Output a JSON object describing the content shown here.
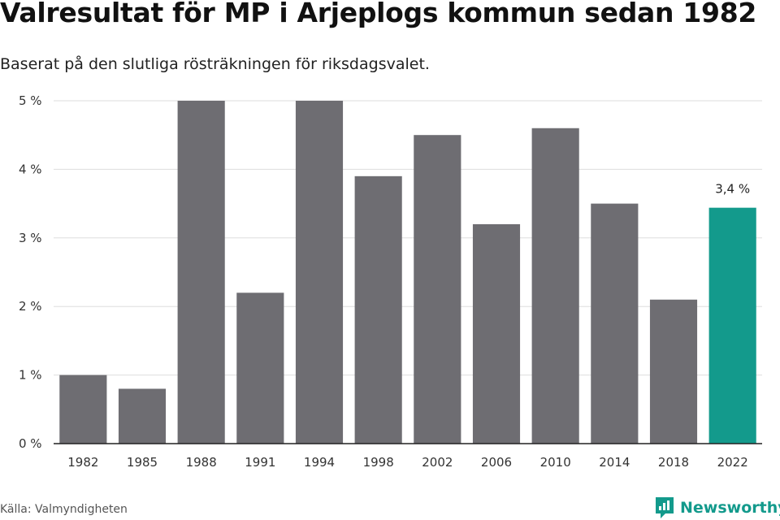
{
  "header": {
    "title": "Valresultat för MP i Arjeplogs kommun sedan 1982",
    "subtitle": "Baserat på den slutliga rösträkningen för riksdagsvalet."
  },
  "footer": {
    "source": "Källa: Valmyndigheten",
    "brand": "Newsworthy",
    "brand_icon": "newsworthy-logo-icon"
  },
  "colors": {
    "bar": "#6e6d72",
    "highlight": "#139a8c",
    "grid": "#dddddd",
    "axis": "#222222",
    "brand": "#139a8c"
  },
  "chart_data": {
    "type": "bar",
    "title": "Valresultat för MP i Arjeplogs kommun sedan 1982",
    "subtitle": "Baserat på den slutliga rösträkningen för riksdagsvalet.",
    "xlabel": "",
    "ylabel": "",
    "categories": [
      "1982",
      "1985",
      "1988",
      "1991",
      "1994",
      "1998",
      "2002",
      "2006",
      "2010",
      "2014",
      "2018",
      "2022"
    ],
    "values": [
      1.0,
      0.8,
      5.0,
      2.2,
      5.0,
      3.9,
      4.5,
      3.2,
      4.6,
      3.5,
      2.1,
      3.44
    ],
    "ylim": [
      0,
      5
    ],
    "yticks": [
      0,
      1,
      2,
      3,
      4,
      5
    ],
    "ytick_labels": [
      "0 %",
      "1 %",
      "2 %",
      "3 %",
      "4 %",
      "5 %"
    ],
    "grid": true,
    "highlight_index": 11,
    "annotations": [
      {
        "category": "2022",
        "text": "3,4 %"
      }
    ]
  }
}
